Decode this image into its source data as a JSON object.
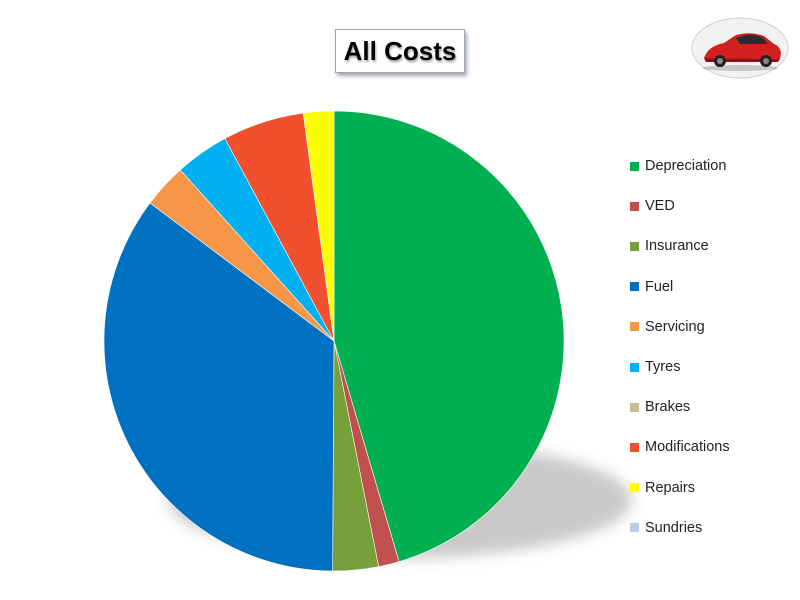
{
  "title": "All Costs",
  "chart_data": {
    "type": "pie",
    "title": "All Costs",
    "start_angle_deg": 0,
    "direction": "clockwise",
    "legend_position": "right",
    "slices": [
      {
        "label": "Depreciation",
        "value": 46.8,
        "color": "#00b050"
      },
      {
        "label": "VED",
        "value": 1.5,
        "color": "#c0504d"
      },
      {
        "label": "Insurance",
        "value": 3.3,
        "color": "#77a03c"
      },
      {
        "label": "Fuel",
        "value": 36.2,
        "color": "#0070c0"
      },
      {
        "label": "Servicing",
        "value": 3.2,
        "color": "#f79646"
      },
      {
        "label": "Tyres",
        "value": 3.9,
        "color": "#00b0f0"
      },
      {
        "label": "Brakes",
        "value": 0.0,
        "color": "#c4bd97"
      },
      {
        "label": "Modifications",
        "value": 5.9,
        "color": "#f0502d"
      },
      {
        "label": "Repairs",
        "value": 2.2,
        "color": "#ffff00"
      },
      {
        "label": "Sundries",
        "value": 0.0,
        "color": "#b9cde5"
      }
    ]
  },
  "icons": {
    "logo": "red-car-logo"
  }
}
